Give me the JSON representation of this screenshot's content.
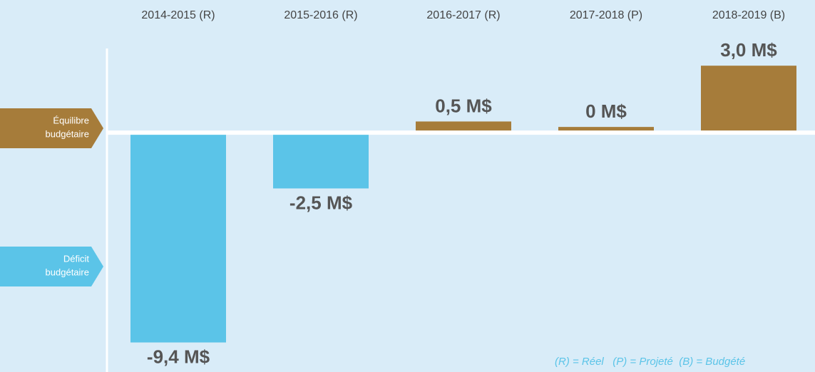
{
  "chart_data": {
    "type": "bar",
    "categories": [
      "2014-2015 (R)",
      "2015-2016 (R)",
      "2016-2017 (R)",
      "2017-2018 (P)",
      "2018-2019 (B)"
    ],
    "values": [
      -9.4,
      -2.5,
      0.5,
      0,
      3.0
    ],
    "value_labels": [
      "-9,4 M$",
      "-2,5 M$",
      "0,5 M$",
      "0 M$",
      "3,0 M$"
    ],
    "colors": [
      "#5bc4e8",
      "#5bc4e8",
      "#a67c3a",
      "#a67c3a",
      "#a67c3a"
    ],
    "ylim": [
      -10.5,
      3.5
    ],
    "annotations": [
      {
        "lines": [
          "Équilibre",
          "budgétaire"
        ],
        "color": "#a67c3a"
      },
      {
        "lines": [
          "Déficit",
          "budgétaire"
        ],
        "color": "#5bc4e8"
      }
    ],
    "footnote": "(R) = Réel   (P) = Projeté  (B) = Budgété"
  }
}
